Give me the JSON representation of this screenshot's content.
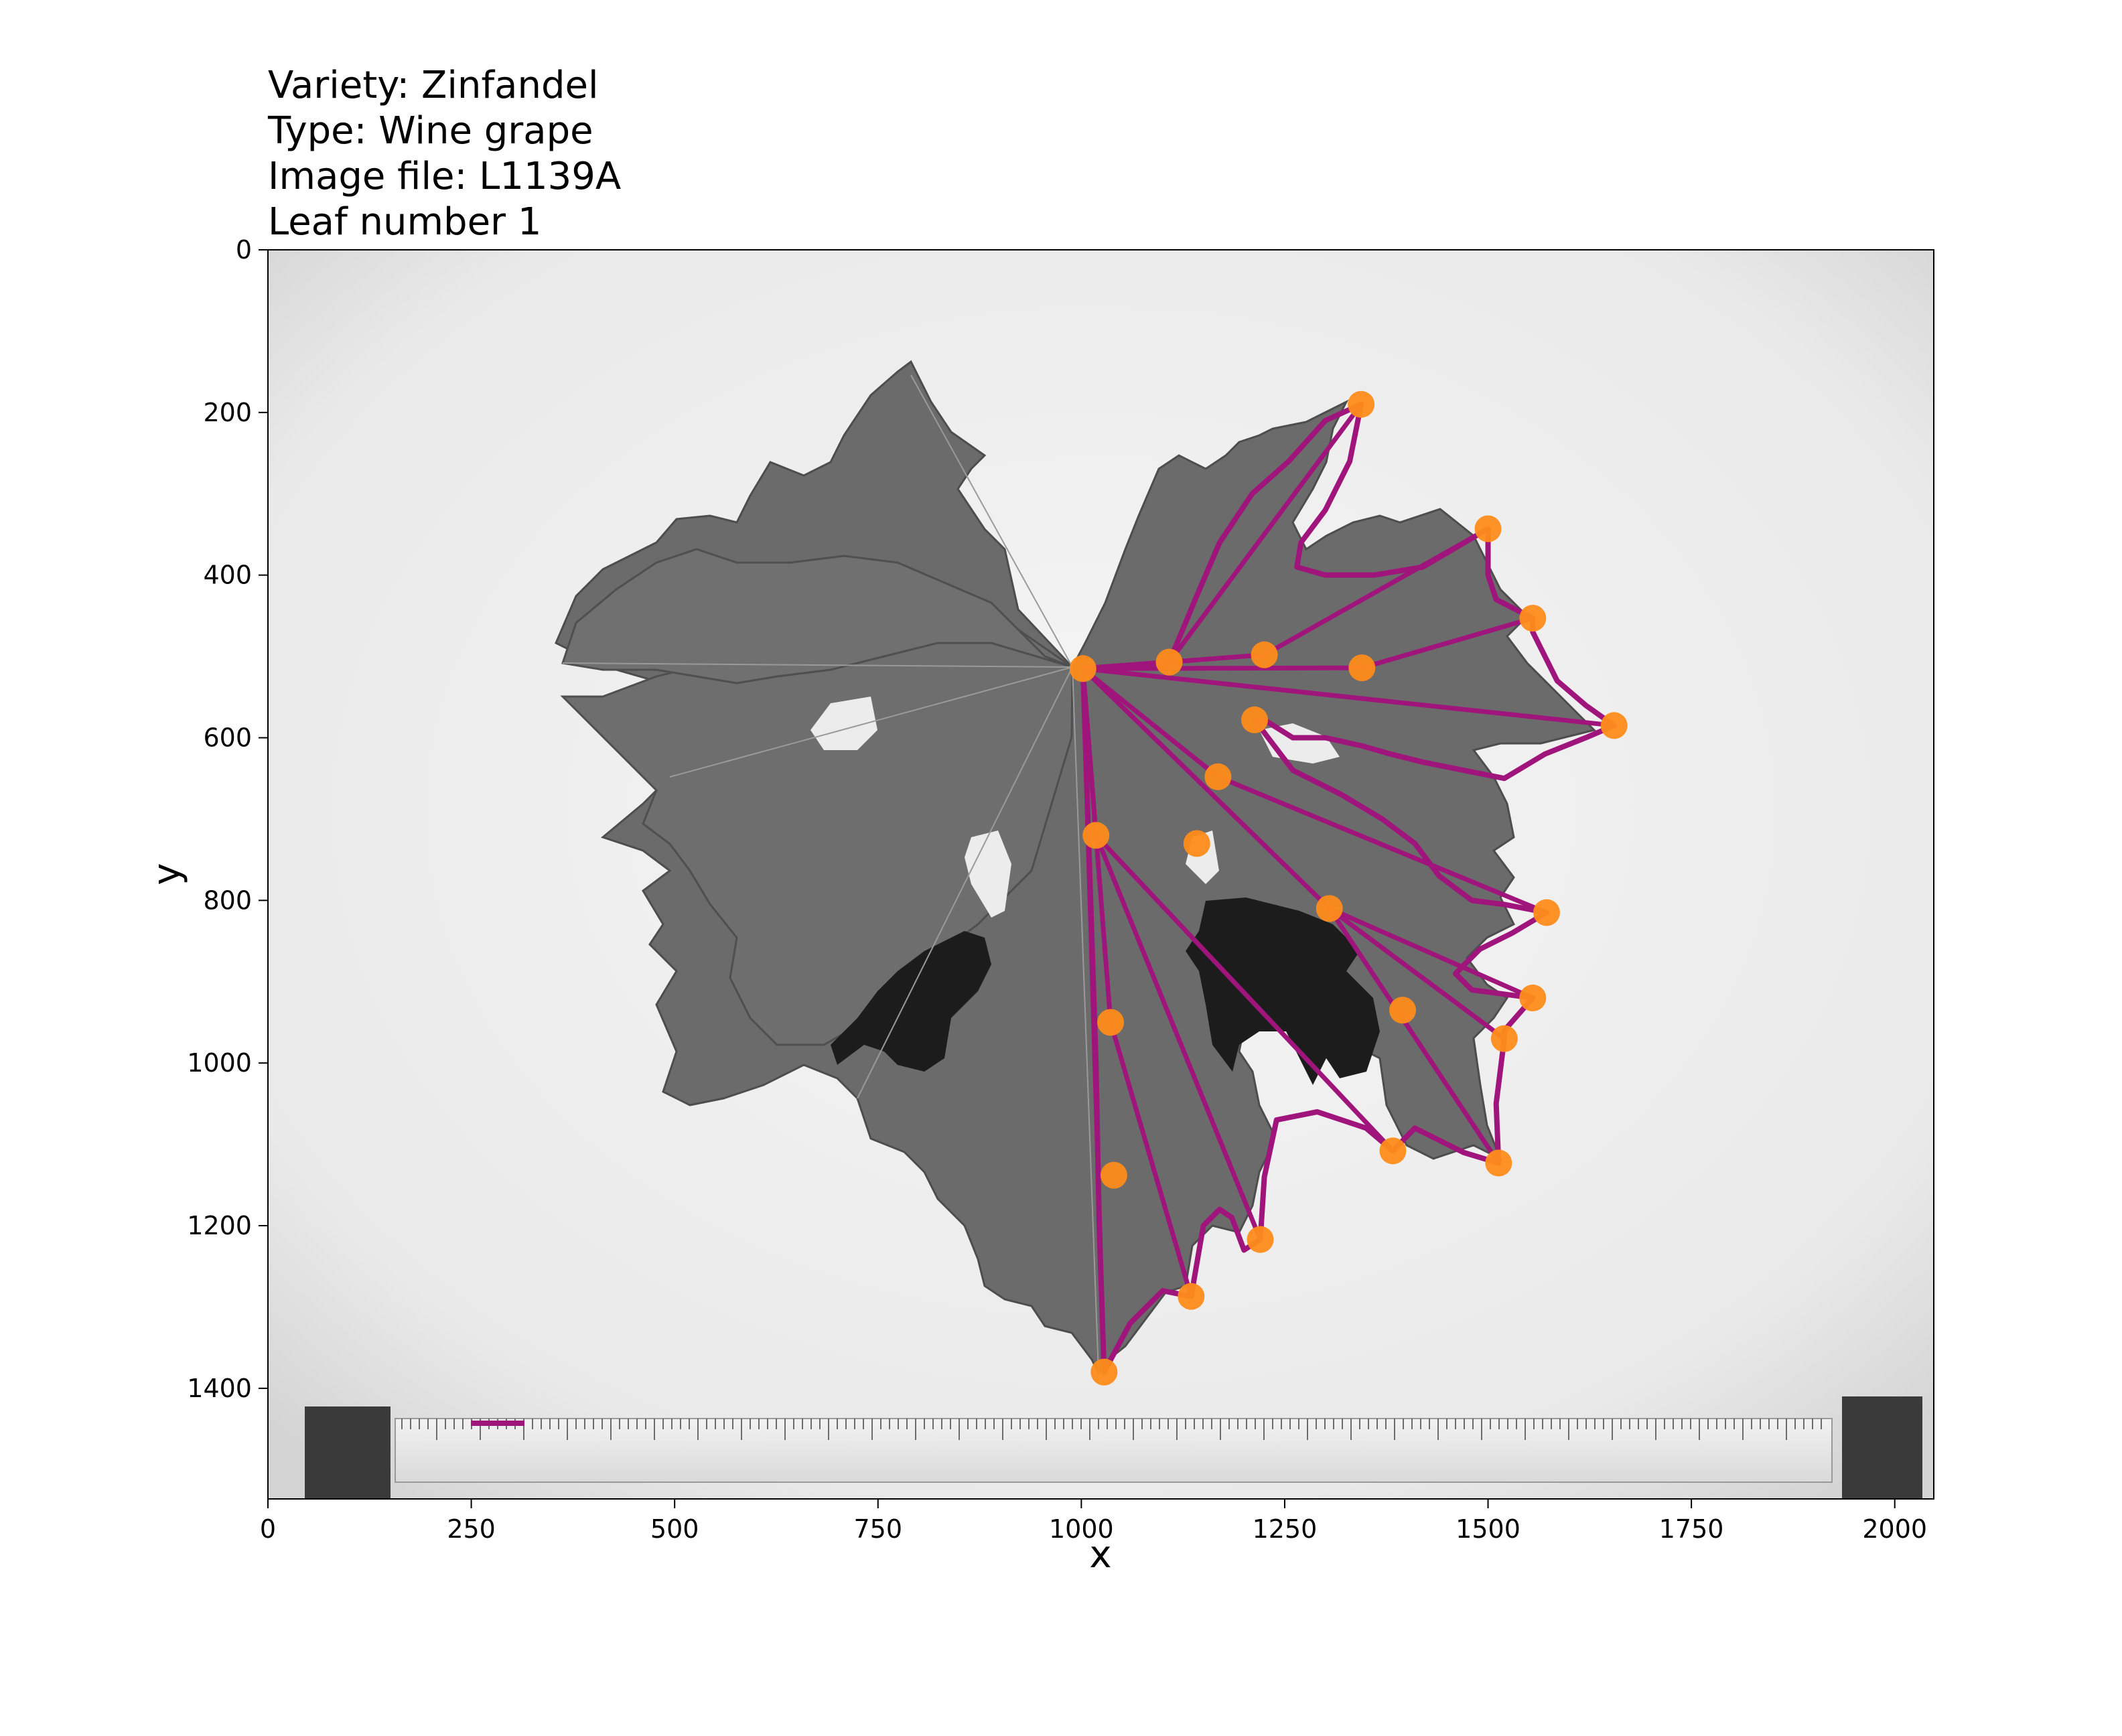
{
  "header": {
    "lines": [
      "Variety: Zinfandel",
      "Type: Wine grape",
      "Image file: L1139A",
      "Leaf number 1"
    ]
  },
  "chart_data": {
    "type": "scatter",
    "title": "Variety: Zinfandel\nType: Wine grape\nImage file: L1139A\nLeaf number 1",
    "xlabel": "x",
    "ylabel": "y",
    "xlim": [
      0,
      2048
    ],
    "ylim": [
      1536,
      0
    ],
    "y_inverted": true,
    "grid": false,
    "xticks": [
      0,
      250,
      500,
      750,
      1000,
      1250,
      1500,
      1750,
      2000
    ],
    "yticks": [
      0,
      200,
      400,
      600,
      800,
      1000,
      1200,
      1400
    ],
    "colors": {
      "landmarks": "#ff8c1a",
      "outline": "#a0157c"
    },
    "landmarks": {
      "name": "landmarks",
      "x": [
        1002,
        1344,
        1500,
        1555,
        1655,
        1572,
        1555,
        1520,
        1513,
        1383,
        1220,
        1135,
        1028,
        1108,
        1225,
        1345,
        1213,
        1168,
        1142,
        1305,
        1395,
        1036,
        1040,
        1018
      ],
      "y": [
        515,
        190,
        343,
        453,
        585,
        815,
        920,
        970,
        1123,
        1108,
        1217,
        1287,
        1380,
        507,
        498,
        514,
        578,
        648,
        730,
        810,
        935,
        950,
        1138,
        720
      ]
    },
    "outline": {
      "name": "outline",
      "x": [
        1002,
        1108,
        1140,
        1170,
        1210,
        1255,
        1300,
        1344,
        1330,
        1300,
        1270,
        1265,
        1300,
        1360,
        1420,
        1500,
        1500,
        1510,
        1555,
        1555,
        1585,
        1620,
        1655,
        1620,
        1570,
        1520,
        1470,
        1420,
        1380,
        1345,
        1300,
        1260,
        1225,
        1213,
        1260,
        1320,
        1370,
        1410,
        1440,
        1480,
        1520,
        1572,
        1530,
        1490,
        1460,
        1480,
        1555,
        1520,
        1520,
        1510,
        1513,
        1470,
        1410,
        1383,
        1350,
        1290,
        1240,
        1225,
        1220,
        1200,
        1185,
        1170,
        1150,
        1135,
        1100,
        1060,
        1028,
        1022,
        1018,
        1002
      ],
      "y": [
        515,
        507,
        430,
        360,
        300,
        260,
        210,
        190,
        260,
        320,
        360,
        390,
        400,
        400,
        390,
        343,
        400,
        430,
        453,
        470,
        530,
        560,
        585,
        600,
        620,
        650,
        640,
        630,
        620,
        610,
        600,
        600,
        578,
        578,
        640,
        670,
        700,
        730,
        770,
        800,
        805,
        815,
        840,
        860,
        890,
        910,
        920,
        960,
        970,
        1050,
        1123,
        1110,
        1080,
        1108,
        1080,
        1060,
        1070,
        1140,
        1217,
        1230,
        1190,
        1180,
        1200,
        1287,
        1280,
        1320,
        1380,
        1200,
        1000,
        515
      ]
    },
    "veins": [
      {
        "name": "vein-1",
        "x": [
          1002,
          1108,
          1344
        ],
        "y": [
          515,
          507,
          190
        ]
      },
      {
        "name": "vein-2",
        "x": [
          1002,
          1225,
          1500
        ],
        "y": [
          515,
          498,
          343
        ]
      },
      {
        "name": "vein-3",
        "x": [
          1002,
          1345,
          1555
        ],
        "y": [
          515,
          514,
          453
        ]
      },
      {
        "name": "vein-4",
        "x": [
          1002,
          1655
        ],
        "y": [
          515,
          585
        ]
      },
      {
        "name": "vein-5",
        "x": [
          1002,
          1168,
          1572
        ],
        "y": [
          515,
          648,
          815
        ]
      },
      {
        "name": "vein-6",
        "x": [
          1002,
          1305,
          1555
        ],
        "y": [
          515,
          810,
          920
        ]
      },
      {
        "name": "vein-7",
        "x": [
          1305,
          1520
        ],
        "y": [
          810,
          970
        ]
      },
      {
        "name": "vein-8",
        "x": [
          1305,
          1513
        ],
        "y": [
          810,
          1123
        ]
      },
      {
        "name": "vein-9",
        "x": [
          1002,
          1018,
          1383
        ],
        "y": [
          515,
          720,
          1108
        ]
      },
      {
        "name": "vein-10",
        "x": [
          1018,
          1220
        ],
        "y": [
          720,
          1217
        ]
      },
      {
        "name": "vein-11",
        "x": [
          1002,
          1036,
          1135
        ],
        "y": [
          515,
          950,
          1287
        ]
      },
      {
        "name": "vein-12",
        "x": [
          1002,
          1028
        ],
        "y": [
          515,
          1380
        ]
      }
    ]
  }
}
